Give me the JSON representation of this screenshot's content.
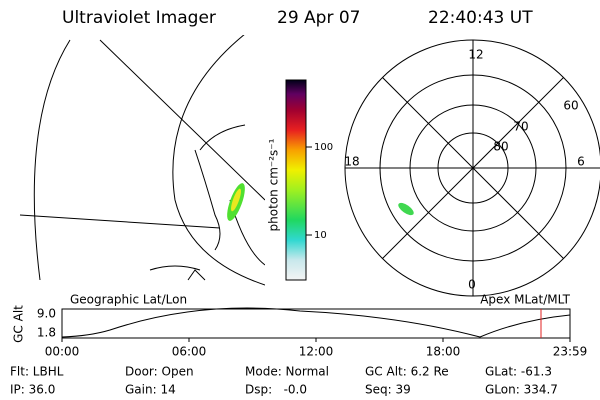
{
  "header": {
    "title": "Ultraviolet Imager",
    "date": "29 Apr 07",
    "time": "22:40:43 UT"
  },
  "colorbar": {
    "label": "photon cm⁻²s⁻¹",
    "ticks": [
      "100",
      "10"
    ]
  },
  "map": {
    "label": "Geographic Lat/Lon"
  },
  "polar": {
    "label": "Apex MLat/MLT",
    "mlt_labels": [
      "12",
      "18",
      "6",
      "0"
    ],
    "mlat_labels": [
      "60",
      "70",
      "80"
    ]
  },
  "timeline": {
    "y_label": "GC Alt",
    "y_ticks": [
      "9.0",
      "1.8"
    ],
    "x_ticks": [
      "00:00",
      "06:00",
      "12:00",
      "18:00",
      "23:59"
    ]
  },
  "info": {
    "rows": [
      [
        "Flt: LBHL",
        "Door: Open",
        "Mode: Normal",
        "GC Alt: 6.2 Re",
        "GLat: -61.3"
      ],
      [
        "IP: 36.0",
        "Gain: 14",
        "Dsp:   -0.0",
        "Seq: 39",
        "GLon: 334.7"
      ]
    ]
  }
}
